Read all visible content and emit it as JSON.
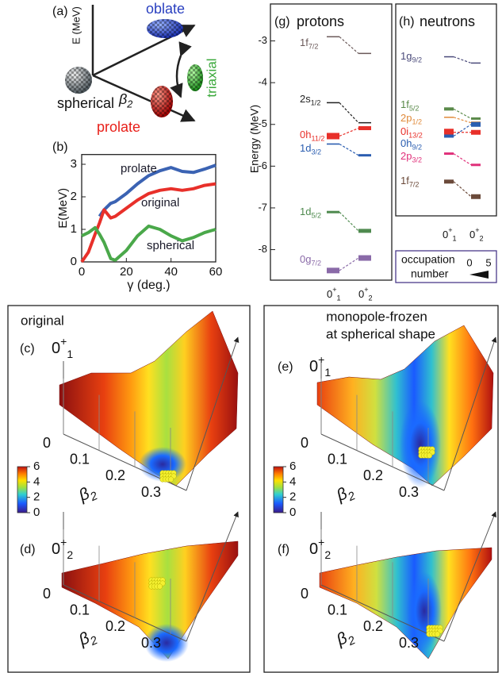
{
  "panel_a": {
    "label": "(a)",
    "axis_label": "E (MeV)",
    "shapes": {
      "oblate": "oblate",
      "triaxial": "triaxial",
      "spherical": "spherical",
      "prolate": "prolate"
    },
    "deformation": {
      "base": "β",
      "sub": "2"
    }
  },
  "chart_data": {
    "type": "line",
    "label": "(b)",
    "xlabel": "γ (deg.)",
    "ylabel": "E(MeV)",
    "x": [
      0,
      3,
      6,
      8,
      10,
      13,
      15,
      20,
      25,
      30,
      35,
      40,
      45,
      50,
      55,
      60
    ],
    "xlim": [
      0,
      60
    ],
    "xticks": [
      0,
      20,
      40,
      60
    ],
    "ylim": [
      0,
      3.3
    ],
    "yticks": [
      0,
      1,
      2,
      3
    ],
    "series": [
      {
        "name": "prolate",
        "color": "#3b63b3",
        "values": [
          null,
          null,
          null,
          1.4,
          1.6,
          1.8,
          1.85,
          2.1,
          2.4,
          2.65,
          2.8,
          2.9,
          2.78,
          2.75,
          2.85,
          2.97
        ]
      },
      {
        "name": "original",
        "color": "#e8302a",
        "values": [
          0,
          0.3,
          0.85,
          1.2,
          1.6,
          1.35,
          1.4,
          1.65,
          1.9,
          2.1,
          2.2,
          2.25,
          2.2,
          2.25,
          2.35,
          2.4
        ]
      },
      {
        "name": "spherical",
        "color": "#4aa84a",
        "values": [
          0.8,
          0.9,
          1.05,
          0.85,
          0.6,
          0.1,
          0.05,
          0.35,
          0.8,
          1.1,
          1.0,
          0.8,
          0.65,
          0.75,
          0.9,
          1.0
        ]
      }
    ]
  },
  "levels": {
    "ylabel": "Energy  (MeV)",
    "ylim": [
      -8.75,
      -2.4
    ],
    "yticks": [
      -3,
      -4,
      -5,
      -6,
      -7,
      -8
    ],
    "states": [
      {
        "base": "0",
        "sup": "+",
        "sub": "1"
      },
      {
        "base": "0",
        "sup": "+",
        "sub": "2"
      }
    ],
    "protons": {
      "label": "(g)",
      "title": "protons",
      "orbitals": [
        {
          "name": "1f",
          "sub": "7/2",
          "color": "#6b5a5a",
          "energy": [
            -2.9,
            -3.3
          ],
          "occupation": [
            0.3,
            0.3
          ]
        },
        {
          "name": "2s",
          "sub": "1/2",
          "color": "#222222",
          "energy": [
            -4.48,
            -4.96
          ],
          "occupation": [
            0.3,
            0.5
          ]
        },
        {
          "name": "0h",
          "sub": "11/2",
          "color": "#e8302a",
          "energy": [
            -5.28,
            -5.09
          ],
          "occupation": [
            4,
            2.5
          ]
        },
        {
          "name": "1d",
          "sub": "3/2",
          "color": "#2a5db0",
          "energy": [
            -5.47,
            -5.74
          ],
          "occupation": [
            0.8,
            1.5
          ]
        },
        {
          "name": "1d",
          "sub": "5/2",
          "color": "#4f8a4f",
          "energy": [
            -7.1,
            -7.55
          ],
          "occupation": [
            1.5,
            2.5
          ]
        },
        {
          "name": "0g",
          "sub": "7/2",
          "color": "#8a6aa8",
          "energy": [
            -8.5,
            -8.2
          ],
          "occupation": [
            3.5,
            3.5
          ]
        }
      ]
    },
    "neutrons": {
      "label": "(h)",
      "title": "neutrons",
      "orbitals": [
        {
          "name": "1g",
          "sub": "9/2",
          "color": "#4a4a7a",
          "energy": [
            -3.38,
            -3.53
          ],
          "occupation": [
            0.6,
            0.5
          ]
        },
        {
          "name": "1f",
          "sub": "5/2",
          "color": "#5a8a4a",
          "energy": [
            -4.63,
            -4.86
          ],
          "occupation": [
            2,
            1.5
          ]
        },
        {
          "name": "2p",
          "sub": "1/2",
          "color": "#e08a3a",
          "energy": [
            -4.83,
            -4.96
          ],
          "occupation": [
            0.5,
            1.5
          ]
        },
        {
          "name": "0i",
          "sub": "13/2",
          "color": "#e8302a",
          "energy": [
            -5.19,
            -5.19
          ],
          "occupation": [
            4.5,
            3
          ]
        },
        {
          "name": "0h",
          "sub": "9/2",
          "color": "#2a5db0",
          "energy": [
            -5.28,
            -5.0
          ],
          "occupation": [
            2,
            3
          ]
        },
        {
          "name": "2p",
          "sub": "3/2",
          "color": "#e0307a",
          "energy": [
            -5.7,
            -5.97
          ],
          "occupation": [
            1.5,
            1.5
          ]
        },
        {
          "name": "1f",
          "sub": "7/2",
          "color": "#6b4a3a",
          "energy": [
            -6.37,
            -6.73
          ],
          "occupation": [
            2.5,
            3
          ]
        }
      ]
    },
    "occupation_legend": {
      "title": [
        "occupation",
        "number"
      ],
      "ticks": [
        0,
        5
      ]
    }
  },
  "surfaces": {
    "colorbar": {
      "lim": [
        0,
        6
      ],
      "ticks": [
        0,
        2,
        4,
        6
      ]
    },
    "beta_ticks": [
      0,
      0.1,
      0.2,
      0.3
    ],
    "beta_label": {
      "base": "β",
      "sub": "2"
    },
    "columns": [
      {
        "heading": [
          "original"
        ],
        "panels": [
          {
            "label": "(c)",
            "state": {
              "base": "0",
              "sup": "+",
              "sub": "1"
            }
          },
          {
            "label": "(d)",
            "state": {
              "base": "0",
              "sup": "+",
              "sub": "2"
            }
          }
        ]
      },
      {
        "heading": [
          "monopole-frozen",
          "at spherical shape"
        ],
        "panels": [
          {
            "label": "(e)",
            "state": {
              "base": "0",
              "sup": "+",
              "sub": "1"
            }
          },
          {
            "label": "(f)",
            "state": {
              "base": "0",
              "sup": "+",
              "sub": "2"
            }
          }
        ]
      }
    ]
  }
}
